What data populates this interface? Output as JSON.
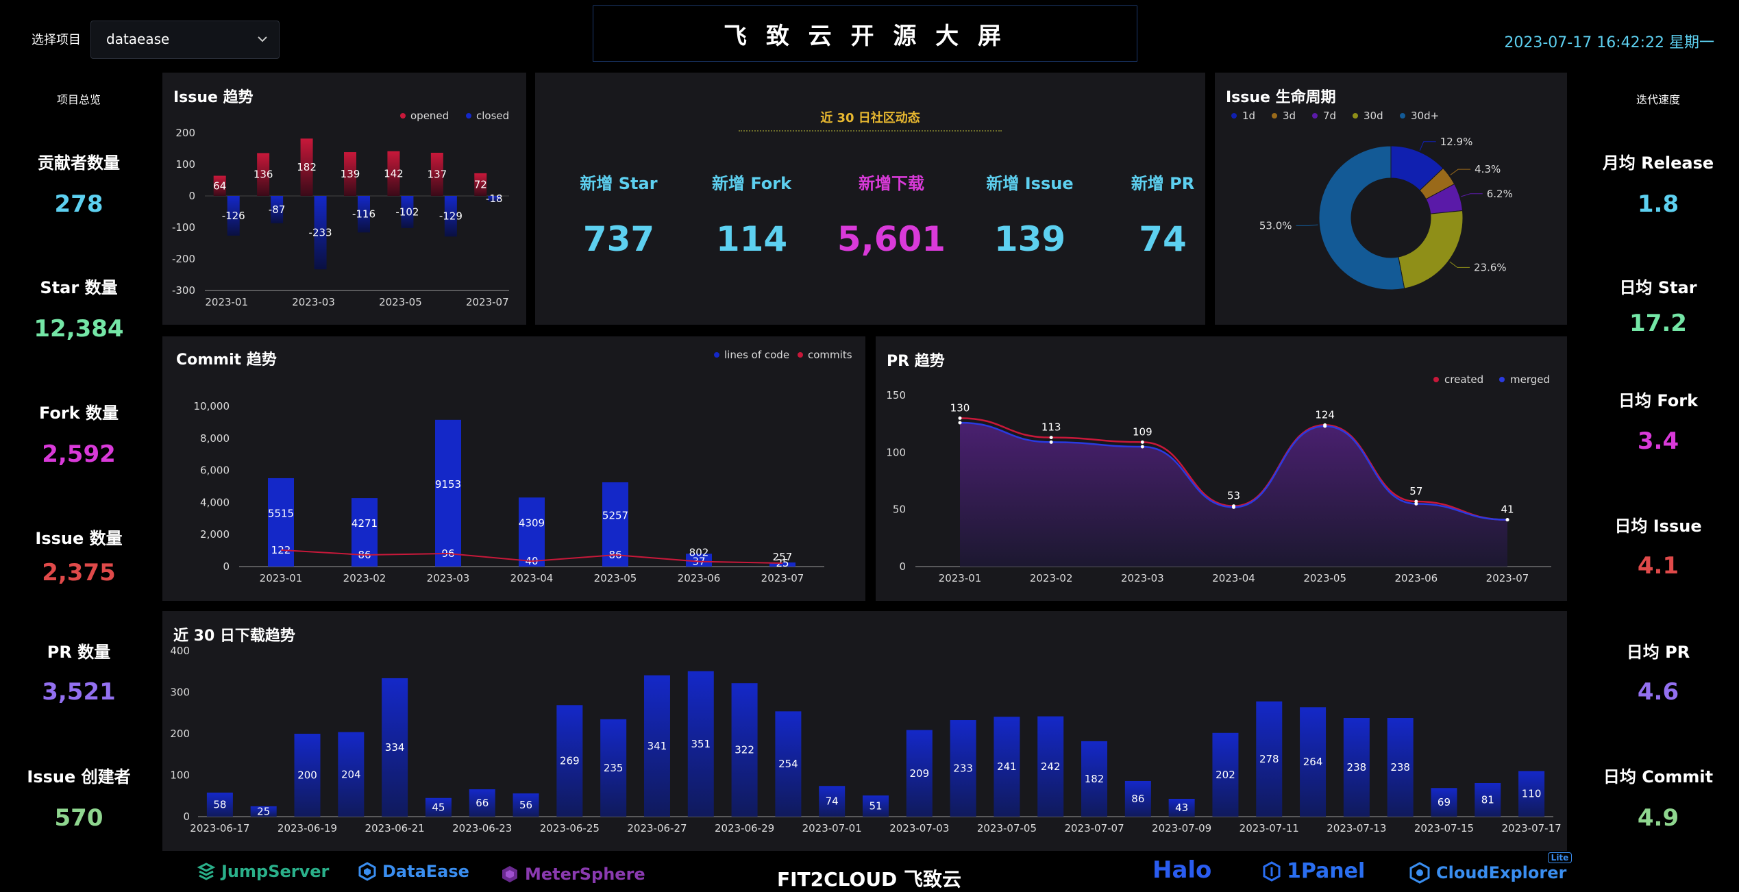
{
  "header": {
    "project_label": "选择项目",
    "project_selected": "dataease",
    "title": "飞 致 云 开 源 大 屏",
    "datetime": "2023-07-17 16:42:22 星期一"
  },
  "left_panel": {
    "heading": "项目总览",
    "items": [
      {
        "label": "贡献者数量",
        "value": "278",
        "color": "#5dd0f0"
      },
      {
        "label": "Star 数量",
        "value": "12,384",
        "color": "#74e6a6"
      },
      {
        "label": "Fork 数量",
        "value": "2,592",
        "color": "#d93ad9"
      },
      {
        "label": "Issue 数量",
        "value": "2,375",
        "color": "#e04a4a"
      },
      {
        "label": "PR 数量",
        "value": "3,521",
        "color": "#9370f0"
      },
      {
        "label": "Issue 创建者",
        "value": "570",
        "color": "#8fd68f"
      }
    ]
  },
  "right_panel": {
    "heading": "迭代速度",
    "items": [
      {
        "label": "月均 Release",
        "value": "1.8",
        "color": "#5dd0f0"
      },
      {
        "label": "日均 Star",
        "value": "17.2",
        "color": "#74e6a6"
      },
      {
        "label": "日均 Fork",
        "value": "3.4",
        "color": "#d93ad9"
      },
      {
        "label": "日均 Issue",
        "value": "4.1",
        "color": "#e04a4a"
      },
      {
        "label": "日均 PR",
        "value": "4.6",
        "color": "#9370f0"
      },
      {
        "label": "日均 Commit",
        "value": "4.9",
        "color": "#8fd68f"
      }
    ]
  },
  "community": {
    "title": "近 30 日社区动态",
    "items": [
      {
        "label": "新增 Star",
        "value": "737",
        "color": "#5dd0f0"
      },
      {
        "label": "新增 Fork",
        "value": "114",
        "color": "#5dd0f0"
      },
      {
        "label": "新增下载",
        "value": "5,601",
        "color": "#d93ad9"
      },
      {
        "label": "新增 Issue",
        "value": "139",
        "color": "#5dd0f0"
      },
      {
        "label": "新增 PR",
        "value": "74",
        "color": "#5dd0f0"
      }
    ]
  },
  "footer": {
    "logos": [
      "JumpServer",
      "DataEase",
      "MeterSphere",
      "Halo",
      "1Panel",
      "CloudExplorer"
    ],
    "lite_badge": "Lite",
    "center_brand": "FIT2CLOUD 飞致云"
  },
  "chart_data": [
    {
      "id": "issue_trend",
      "type": "bar",
      "title": "Issue 趋势",
      "categories": [
        "2023-01",
        "2023-02",
        "2023-03",
        "2023-04",
        "2023-05",
        "2023-06",
        "2023-07"
      ],
      "xticks": [
        "2023-01",
        "2023-03",
        "2023-05",
        "2023-07"
      ],
      "series": [
        {
          "name": "opened",
          "values": [
            64,
            136,
            182,
            139,
            142,
            137,
            72
          ],
          "color": "#c8183a"
        },
        {
          "name": "closed",
          "values": [
            -126,
            -87,
            -233,
            -116,
            -102,
            -129,
            -18
          ],
          "color": "#1428c8"
        }
      ],
      "ylim": [
        -300,
        200
      ],
      "yticks": [
        200,
        100,
        0,
        -100,
        -200,
        -300
      ],
      "legend": "top-right"
    },
    {
      "id": "issue_lifecycle",
      "type": "pie",
      "title": "Issue 生命周期",
      "slices": [
        {
          "name": "1d",
          "value": 12.9,
          "label": "12.9%",
          "color": "#1020b0"
        },
        {
          "name": "3d",
          "value": 4.3,
          "label": "4.3%",
          "color": "#9a6a1a"
        },
        {
          "name": "7d",
          "value": 6.2,
          "label": "6.2%",
          "color": "#5a1aa8"
        },
        {
          "name": "30d",
          "value": 23.6,
          "label": "23.6%",
          "color": "#8f8f18"
        },
        {
          "name": "30d+",
          "value": 53.0,
          "label": "53.0%",
          "color": "#135a96"
        }
      ],
      "legend": "top-left"
    },
    {
      "id": "commit_trend",
      "type": "bar",
      "title": "Commit 趋势",
      "categories": [
        "2023-01",
        "2023-02",
        "2023-03",
        "2023-04",
        "2023-05",
        "2023-06",
        "2023-07"
      ],
      "series": [
        {
          "name": "lines of code",
          "values": [
            5515,
            4271,
            9153,
            4309,
            5257,
            802,
            257
          ],
          "color": "#1428c8"
        },
        {
          "name": "commits",
          "values": [
            122,
            86,
            96,
            40,
            86,
            37,
            25
          ],
          "color": "#c8183a"
        }
      ],
      "ylim": [
        0,
        10000
      ],
      "yticks": [
        "0",
        "2,000",
        "4,000",
        "6,000",
        "8,000",
        "10,000"
      ],
      "legend": "top-right"
    },
    {
      "id": "pr_trend",
      "type": "area",
      "title": "PR 趋势",
      "categories": [
        "2023-01",
        "2023-02",
        "2023-03",
        "2023-04",
        "2023-05",
        "2023-06",
        "2023-07"
      ],
      "series": [
        {
          "name": "created",
          "values": [
            130,
            113,
            109,
            53,
            124,
            57,
            41
          ],
          "color": "#c8183a"
        },
        {
          "name": "merged",
          "values": [
            126,
            109,
            105,
            52,
            123,
            55,
            41
          ],
          "color": "#2a3ae0"
        }
      ],
      "ylim": [
        0,
        150
      ],
      "yticks": [
        0,
        50,
        100,
        150
      ],
      "legend": "top-right"
    },
    {
      "id": "download_trend",
      "type": "bar",
      "title": "近 30 日下载趋势",
      "categories": [
        "2023-06-17",
        "2023-06-18",
        "2023-06-19",
        "2023-06-20",
        "2023-06-21",
        "2023-06-22",
        "2023-06-23",
        "2023-06-24",
        "2023-06-25",
        "2023-06-26",
        "2023-06-27",
        "2023-06-28",
        "2023-06-29",
        "2023-06-30",
        "2023-07-01",
        "2023-07-02",
        "2023-07-03",
        "2023-07-04",
        "2023-07-05",
        "2023-07-06",
        "2023-07-07",
        "2023-07-08",
        "2023-07-09",
        "2023-07-10",
        "2023-07-11",
        "2023-07-12",
        "2023-07-13",
        "2023-07-14",
        "2023-07-15",
        "2023-07-16",
        "2023-07-17"
      ],
      "xticks": [
        "2023-06-17",
        "2023-06-19",
        "2023-06-21",
        "2023-06-23",
        "2023-06-25",
        "2023-06-27",
        "2023-06-29",
        "2023-07-01",
        "2023-07-03",
        "2023-07-05",
        "2023-07-07",
        "2023-07-09",
        "2023-07-11",
        "2023-07-13",
        "2023-07-15",
        "2023-07-17"
      ],
      "values": [
        58,
        25,
        200,
        204,
        334,
        45,
        66,
        56,
        269,
        235,
        341,
        351,
        322,
        254,
        74,
        51,
        209,
        233,
        241,
        242,
        182,
        86,
        43,
        202,
        278,
        264,
        238,
        238,
        69,
        81,
        110
      ],
      "ylim": [
        0,
        400
      ],
      "yticks": [
        0,
        100,
        200,
        300,
        400
      ],
      "color": "#1428c8"
    }
  ]
}
